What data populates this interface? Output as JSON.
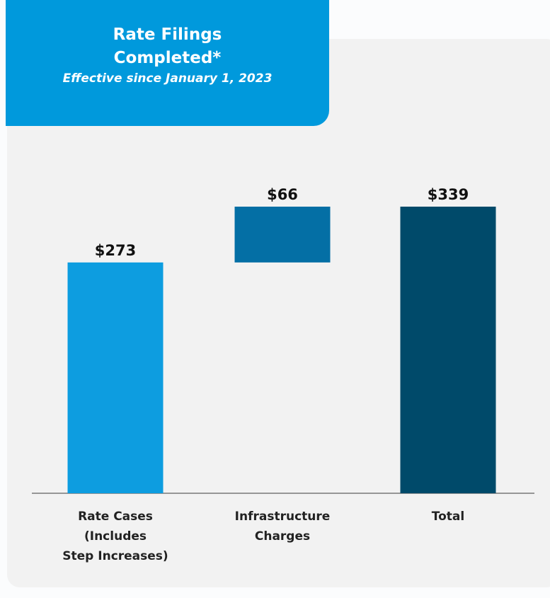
{
  "chart_data": {
    "type": "waterfall",
    "title": "Rate Filings\nCompleted*",
    "subtitle": "Effective since January 1, 2023",
    "categories": [
      "Rate Cases\n(Includes\nStep Increases)",
      "Infrastructure\nCharges",
      "Total"
    ],
    "values": [
      273,
      66,
      339
    ],
    "value_labels": [
      "$273",
      "$66",
      "$339"
    ],
    "measure": [
      "relative",
      "relative",
      "total"
    ],
    "colors": [
      "#0d9de0",
      "#046fa5",
      "#004a6a"
    ]
  }
}
